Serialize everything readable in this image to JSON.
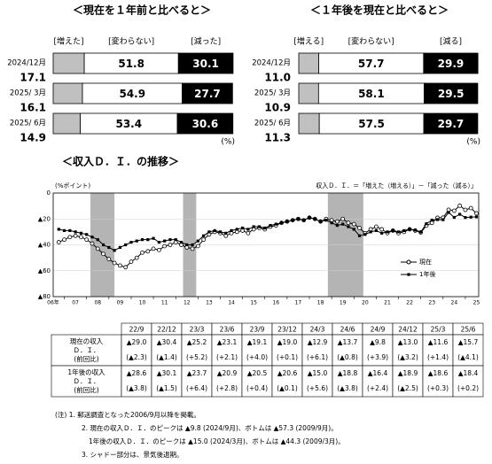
{
  "chart_data": [
    {
      "type": "stacked_bar",
      "title": "＜現在を１年前と比べると＞",
      "categories": [
        "2024/12月",
        "2025/ 3月",
        "2025/ 6月"
      ],
      "series": [
        {
          "name": "[増えた]",
          "color": "#c0c0c0",
          "values": [
            17.1,
            16.1,
            14.9
          ]
        },
        {
          "name": "[変わらない]",
          "color": "#ffffff",
          "values": [
            51.8,
            54.9,
            53.4
          ]
        },
        {
          "name": "[減った]",
          "color": "#000000",
          "values": [
            30.1,
            27.7,
            30.6
          ]
        }
      ],
      "unit": "(%)"
    },
    {
      "type": "stacked_bar",
      "title": "＜１年後を現在と比べると＞",
      "categories": [
        "2024/12月",
        "2025/ 3月",
        "2025/ 6月"
      ],
      "series": [
        {
          "name": "[増える]",
          "color": "#c0c0c0",
          "values": [
            11.0,
            10.9,
            11.3
          ],
          "value_labels": [
            "11.0",
            "10.9",
            "11.3"
          ]
        },
        {
          "name": "[変わらない]",
          "color": "#ffffff",
          "values": [
            57.7,
            58.1,
            57.5
          ]
        },
        {
          "name": "[減る]",
          "color": "#000000",
          "values": [
            29.9,
            29.5,
            29.7
          ]
        }
      ],
      "unit": "(%)"
    },
    {
      "type": "line",
      "title": "＜収入Ｄ．Ｉ．の推移＞",
      "y_label": "(%ポイント)",
      "annotation": "収入Ｄ．Ｉ．＝「増えた（増える）」－「減った（減る）」",
      "x": [
        2006.75,
        2007,
        2007.25,
        2007.5,
        2007.75,
        2008,
        2008.25,
        2008.5,
        2008.75,
        2009,
        2009.25,
        2009.5,
        2009.75,
        2010,
        2010.25,
        2010.5,
        2010.75,
        2011,
        2011.25,
        2011.5,
        2011.75,
        2012,
        2012.25,
        2012.5,
        2012.75,
        2013,
        2013.25,
        2013.5,
        2013.75,
        2014,
        2014.25,
        2014.5,
        2014.75,
        2015,
        2015.25,
        2015.5,
        2015.75,
        2016,
        2016.25,
        2016.5,
        2016.75,
        2017,
        2017.25,
        2017.5,
        2017.75,
        2018,
        2018.25,
        2018.5,
        2018.75,
        2019,
        2019.25,
        2019.5,
        2019.75,
        2020,
        2020.25,
        2020.5,
        2020.75,
        2021,
        2021.25,
        2021.5,
        2021.75,
        2022,
        2022.25,
        2022.5,
        2022.75,
        2023,
        2023.25,
        2023.5,
        2023.75,
        2024,
        2024.25,
        2024.5,
        2024.75,
        2025,
        2025.25,
        2025.5
      ],
      "series": [
        {
          "name": "現在",
          "color": "#000000",
          "marker": "circle",
          "values": [
            -38,
            -36,
            -34,
            -33,
            -34,
            -36,
            -39,
            -43,
            -47,
            -51,
            -54,
            -56,
            -57.3,
            -53,
            -50,
            -46,
            -45,
            -43,
            -44,
            -41,
            -40,
            -38,
            -40,
            -42,
            -43,
            -41,
            -36,
            -32,
            -30,
            -31,
            -33,
            -31,
            -30,
            -29,
            -31,
            -28,
            -27,
            -28,
            -26,
            -25,
            -23,
            -22,
            -21,
            -20,
            -21,
            -19,
            -20,
            -22,
            -20,
            -21,
            -22,
            -20,
            -23,
            -24,
            -27,
            -31,
            -28,
            -26,
            -28,
            -31,
            -29,
            -31,
            -30,
            -28,
            -29.0,
            -30.4,
            -25.2,
            -23.1,
            -19.1,
            -19.0,
            -12.9,
            -13.7,
            -9.8,
            -13.0,
            -11.6,
            -15.7
          ]
        },
        {
          "name": "1年後",
          "color": "#000000",
          "marker": "square",
          "values": [
            -28,
            -29,
            -29,
            -30,
            -31,
            -32,
            -34,
            -36,
            -40,
            -42,
            -44.3,
            -42,
            -40,
            -38,
            -37,
            -36,
            -36,
            -35,
            -38,
            -37,
            -36,
            -36,
            -38,
            -40,
            -40,
            -37,
            -33,
            -30,
            -29,
            -30,
            -31,
            -29,
            -28,
            -27,
            -28,
            -26,
            -26,
            -27,
            -25,
            -24,
            -23,
            -22,
            -21,
            -20,
            -21,
            -19,
            -20,
            -22,
            -21,
            -23,
            -25,
            -24,
            -26,
            -28,
            -33,
            -32,
            -30,
            -29,
            -31,
            -30,
            -29,
            -30,
            -29,
            -28,
            -28.6,
            -30.1,
            -23.7,
            -20.9,
            -20.5,
            -20.6,
            -15.0,
            -18.8,
            -16.4,
            -18.9,
            -18.6,
            -18.4
          ]
        }
      ],
      "shades": [
        [
          2008.17,
          2009.25
        ],
        [
          2012.33,
          2012.92
        ],
        [
          2018.83,
          2020.42
        ]
      ],
      "shade_color": "#b4b4b4",
      "xlim": [
        2006.5,
        2025.6
      ],
      "xticks": [
        {
          "value": 2006,
          "label": "06年"
        },
        {
          "value": 2007,
          "label": "07"
        },
        {
          "value": 2008,
          "label": "08"
        },
        {
          "value": 2009,
          "label": "09"
        },
        {
          "value": 2010,
          "label": "10"
        },
        {
          "value": 2011,
          "label": "11"
        },
        {
          "value": 2012,
          "label": "12"
        },
        {
          "value": 2013,
          "label": "13"
        },
        {
          "value": 2014,
          "label": "14"
        },
        {
          "value": 2015,
          "label": "15"
        },
        {
          "value": 2016,
          "label": "16"
        },
        {
          "value": 2017,
          "label": "17"
        },
        {
          "value": 2018,
          "label": "18"
        },
        {
          "value": 2019,
          "label": "19"
        },
        {
          "value": 2020,
          "label": "20"
        },
        {
          "value": 2021,
          "label": "21"
        },
        {
          "value": 2022,
          "label": "22"
        },
        {
          "value": 2023,
          "label": "23"
        },
        {
          "value": 2024,
          "label": "24"
        },
        {
          "value": 2025,
          "label": "25"
        }
      ],
      "ylim": [
        -80,
        0
      ],
      "yticks": [
        0,
        {
          "value": -20,
          "label": "▲20"
        },
        {
          "value": -40,
          "label": "▲40"
        },
        {
          "value": -60,
          "label": "▲60"
        },
        {
          "value": -80,
          "label": "▲80"
        }
      ],
      "grid": true
    }
  ],
  "table": {
    "header": [
      "22/9",
      "22/12",
      "23/3",
      "23/6",
      "23/9",
      "23/12",
      "24/3",
      "24/6",
      "24/9",
      "24/12",
      "25/3",
      "25/6"
    ],
    "rows": [
      {
        "label": [
          "現在の収入",
          "Ｄ．Ｉ．",
          "(前回比)"
        ],
        "values": [
          "▲29.0",
          "▲30.4",
          "▲25.2",
          "▲23.1",
          "▲19.1",
          "▲19.0",
          "▲12.9",
          "▲13.7",
          "▲9.8",
          "▲13.0",
          "▲11.6",
          "▲15.7"
        ],
        "changes": [
          "(▲2.3)",
          "(▲1.4)",
          "(+5.2)",
          "(+2.1)",
          "(+4.0)",
          "(+0.1)",
          "(+6.1)",
          "(▲0.8)",
          "(+3.9)",
          "(▲3.2)",
          "(+1.4)",
          "(▲4.1)"
        ]
      },
      {
        "label": [
          "1年後の収入",
          "Ｄ．Ｉ．",
          "(前回比)"
        ],
        "values": [
          "▲28.6",
          "▲30.1",
          "▲23.7",
          "▲20.9",
          "▲20.5",
          "▲20.6",
          "▲15.0",
          "▲18.8",
          "▲16.4",
          "▲18.9",
          "▲18.6",
          "▲18.4"
        ],
        "changes": [
          "(▲3.8)",
          "(▲1.5)",
          "(+6.4)",
          "(+2.8)",
          "(+0.4)",
          "(▲0.1)",
          "(+5.6)",
          "(▲3.8)",
          "(+2.4)",
          "(▲2.5)",
          "(+0.3)",
          "(+0.2)"
        ]
      }
    ]
  },
  "notes": [
    "(注) 1. 郵送調査となった2006/9月以降を掲載。",
    "2. 現在の収入Ｄ．Ｉ．のピークは ▲9.8 (2024/9月)、ボトムは ▲57.3 (2009/9月)。",
    "1年後の収入Ｄ．Ｉ．のピークは ▲15.0 (2024/3月)、ボトムは ▲44.3 (2009/3月)。",
    "3. シャドー部分は、景気後退期。"
  ]
}
